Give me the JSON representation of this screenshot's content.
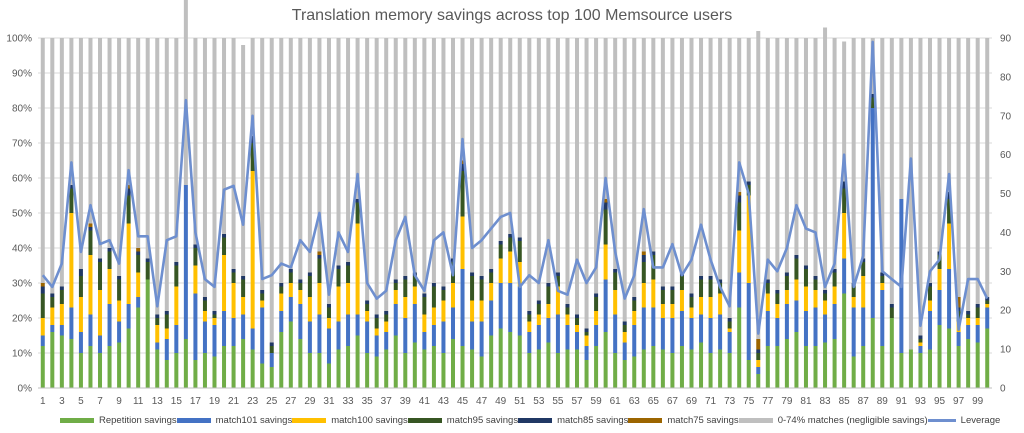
{
  "chart_data": {
    "type": "bar",
    "title": "Translation memory savings across top 100 Memsource users",
    "stacked": true,
    "x": [
      1,
      2,
      3,
      4,
      5,
      6,
      7,
      8,
      9,
      10,
      11,
      12,
      13,
      14,
      15,
      16,
      17,
      18,
      19,
      20,
      21,
      22,
      23,
      24,
      25,
      26,
      27,
      28,
      29,
      30,
      31,
      32,
      33,
      34,
      35,
      36,
      37,
      38,
      39,
      40,
      41,
      42,
      43,
      44,
      45,
      46,
      47,
      48,
      49,
      50,
      51,
      52,
      53,
      54,
      55,
      56,
      57,
      58,
      59,
      60,
      61,
      62,
      63,
      64,
      65,
      66,
      67,
      68,
      69,
      70,
      71,
      72,
      73,
      74,
      75,
      76,
      77,
      78,
      79,
      80,
      81,
      82,
      83,
      84,
      85,
      86,
      87,
      88,
      89,
      90,
      91,
      92,
      93,
      94,
      95,
      96,
      97,
      98,
      99,
      100
    ],
    "x_tick_labels": [
      "1",
      "3",
      "5",
      "7",
      "9",
      "11",
      "13",
      "15",
      "17",
      "19",
      "21",
      "23",
      "25",
      "27",
      "29",
      "31",
      "33",
      "35",
      "37",
      "39",
      "41",
      "43",
      "45",
      "47",
      "49",
      "51",
      "53",
      "55",
      "57",
      "59",
      "61",
      "63",
      "65",
      "67",
      "69",
      "71",
      "73",
      "75",
      "77",
      "79",
      "81",
      "83",
      "85",
      "87",
      "89",
      "91",
      "93",
      "95",
      "97",
      "99"
    ],
    "ylim": [
      0,
      100
    ],
    "y_ticks": [
      "0%",
      "10%",
      "20%",
      "30%",
      "40%",
      "50%",
      "60%",
      "70%",
      "80%",
      "90%",
      "100%"
    ],
    "y2lim": [
      0,
      90
    ],
    "y2_ticks": [
      "0",
      "10",
      "20",
      "30",
      "40",
      "50",
      "60",
      "70",
      "80",
      "90"
    ],
    "grid": true,
    "legend_position": "bottom",
    "series": [
      {
        "name": "Repetition savings",
        "color": "#70ad47",
        "values": [
          12,
          16,
          15,
          14,
          10,
          12,
          10,
          12,
          13,
          17,
          23,
          31,
          11,
          8,
          10,
          14,
          8,
          10,
          9,
          12,
          12,
          14,
          11,
          7,
          6,
          16,
          19,
          14,
          10,
          10,
          7,
          11,
          12,
          15,
          10,
          9,
          11,
          15,
          10,
          13,
          11,
          12,
          10,
          14,
          12,
          11,
          9,
          15,
          17,
          16,
          15,
          10,
          11,
          13,
          10,
          11,
          11,
          8,
          12,
          16,
          10,
          8,
          9,
          11,
          12,
          11,
          10,
          12,
          11,
          13,
          10,
          11,
          10,
          23,
          8,
          4,
          12,
          12,
          14,
          16,
          12,
          12,
          13,
          14,
          27,
          9,
          12,
          20,
          12,
          20,
          10,
          11,
          10,
          11,
          18,
          17,
          12,
          14,
          13,
          17
        ]
      },
      {
        "name": "match101 savings",
        "color": "#4472c4",
        "values": [
          3,
          2,
          3,
          9,
          6,
          9,
          5,
          12,
          6,
          7,
          3,
          0,
          2,
          6,
          8,
          44,
          19,
          9,
          9,
          10,
          8,
          7,
          6,
          16,
          4,
          6,
          7,
          10,
          9,
          11,
          10,
          8,
          9,
          6,
          9,
          6,
          5,
          9,
          10,
          11,
          5,
          6,
          9,
          9,
          22,
          8,
          10,
          10,
          13,
          14,
          14,
          6,
          7,
          7,
          11,
          7,
          5,
          4,
          6,
          15,
          11,
          5,
          9,
          12,
          11,
          9,
          10,
          10,
          9,
          8,
          10,
          10,
          6,
          10,
          22,
          2,
          10,
          8,
          10,
          9,
          10,
          11,
          8,
          10,
          10,
          14,
          11,
          60,
          16,
          0,
          44,
          0,
          2,
          11,
          10,
          17,
          4,
          4,
          5,
          6
        ]
      },
      {
        "name": "match100 savings",
        "color": "#ffc000",
        "values": [
          5,
          5,
          6,
          27,
          10,
          17,
          13,
          10,
          6,
          23,
          7,
          0,
          5,
          3,
          11,
          0,
          8,
          3,
          2,
          16,
          10,
          5,
          45,
          2,
          0,
          5,
          4,
          4,
          7,
          9,
          3,
          10,
          9,
          26,
          3,
          2,
          3,
          4,
          6,
          5,
          5,
          5,
          6,
          7,
          15,
          6,
          6,
          5,
          7,
          9,
          7,
          3,
          3,
          4,
          8,
          3,
          2,
          3,
          4,
          10,
          7,
          3,
          4,
          7,
          8,
          4,
          4,
          6,
          3,
          5,
          6,
          6,
          1,
          12,
          25,
          2,
          5,
          4,
          4,
          6,
          7,
          5,
          4,
          5,
          13,
          3,
          9,
          0,
          2,
          0,
          0,
          0,
          1,
          3,
          6,
          13,
          3,
          2,
          2,
          1
        ]
      },
      {
        "name": "match95 savings",
        "color": "#375623",
        "values": [
          7,
          3,
          4,
          7,
          6,
          7,
          8,
          5,
          6,
          8,
          5,
          5,
          2,
          4,
          6,
          0,
          5,
          3,
          1,
          5,
          3,
          5,
          8,
          2,
          2,
          2,
          3,
          2,
          6,
          7,
          3,
          5,
          5,
          6,
          2,
          3,
          2,
          2,
          5,
          3,
          5,
          6,
          3,
          6,
          13,
          7,
          6,
          3,
          4,
          4,
          6,
          2,
          3,
          5,
          3,
          2,
          2,
          1,
          4,
          10,
          5,
          2,
          3,
          6,
          7,
          4,
          4,
          4,
          3,
          5,
          5,
          3,
          2,
          8,
          3,
          2,
          3,
          3,
          4,
          6,
          5,
          3,
          2,
          4,
          7,
          3,
          4,
          3,
          2,
          3,
          0,
          0,
          1,
          4,
          4,
          7,
          3,
          1,
          3,
          1
        ]
      },
      {
        "name": "match85 savings",
        "color": "#203864",
        "values": [
          2,
          1,
          1,
          1,
          2,
          1,
          1,
          1,
          1,
          2,
          1,
          1,
          1,
          1,
          1,
          0,
          1,
          1,
          1,
          1,
          1,
          1,
          2,
          1,
          1,
          1,
          1,
          1,
          1,
          1,
          1,
          1,
          1,
          1,
          1,
          1,
          1,
          1,
          1,
          1,
          1,
          1,
          1,
          1,
          2,
          1,
          1,
          1,
          1,
          1,
          1,
          1,
          1,
          1,
          1,
          1,
          1,
          1,
          1,
          2,
          1,
          1,
          1,
          2,
          1,
          1,
          1,
          1,
          1,
          1,
          1,
          1,
          1,
          2,
          1,
          1,
          1,
          1,
          1,
          1,
          1,
          1,
          1,
          1,
          2,
          1,
          1,
          1,
          1,
          1,
          0,
          0,
          1,
          1,
          1,
          2,
          1,
          1,
          1,
          1
        ]
      },
      {
        "name": "match75 savings",
        "color": "#9c6500",
        "values": [
          1,
          0,
          0,
          0,
          0,
          1,
          0,
          0,
          0,
          1,
          1,
          0,
          0,
          0,
          0,
          0,
          0,
          0,
          0,
          0,
          0,
          0,
          0,
          0,
          0,
          0,
          0,
          0,
          0,
          1,
          0,
          0,
          0,
          0,
          0,
          0,
          0,
          0,
          0,
          0,
          0,
          0,
          0,
          0,
          1,
          0,
          0,
          0,
          0,
          0,
          0,
          0,
          0,
          0,
          0,
          0,
          0,
          0,
          0,
          1,
          0,
          0,
          0,
          1,
          0,
          0,
          0,
          0,
          0,
          0,
          0,
          0,
          0,
          1,
          0,
          3,
          0,
          0,
          0,
          0,
          0,
          0,
          0,
          0,
          0,
          0,
          0,
          0,
          0,
          0,
          0,
          0,
          0,
          0,
          0,
          0,
          3,
          0,
          0,
          0
        ]
      },
      {
        "name": "0-74% matches (negligible savings)",
        "color": "#bfbfbf",
        "values": [
          70,
          73,
          71,
          42,
          66,
          53,
          63,
          60,
          68,
          42,
          60,
          63,
          79,
          78,
          64,
          56,
          59,
          74,
          78,
          56,
          66,
          66,
          28,
          72,
          87,
          70,
          66,
          69,
          67,
          61,
          76,
          65,
          64,
          46,
          75,
          79,
          78,
          69,
          68,
          67,
          73,
          70,
          71,
          63,
          35,
          67,
          68,
          66,
          58,
          56,
          57,
          78,
          75,
          70,
          67,
          76,
          79,
          83,
          73,
          46,
          66,
          81,
          74,
          61,
          61,
          71,
          71,
          67,
          73,
          68,
          68,
          69,
          80,
          44,
          41,
          88,
          69,
          72,
          67,
          62,
          65,
          68,
          75,
          66,
          40,
          70,
          63,
          16,
          67,
          76,
          46,
          89,
          85,
          70,
          61,
          44,
          74,
          78,
          76,
          74
        ]
      },
      {
        "name": "Leverage",
        "type": "line",
        "axis": "secondary",
        "color": "#6e8fcf",
        "values": [
          29,
          26,
          32,
          58,
          35,
          47,
          37,
          38,
          32,
          56,
          39,
          39,
          21,
          38,
          39,
          74,
          40,
          28,
          26,
          51,
          52,
          42,
          70,
          28,
          29,
          32,
          31,
          38,
          35,
          45,
          24,
          40,
          35,
          55,
          27,
          23,
          25,
          38,
          44,
          29,
          25,
          38,
          40,
          29,
          64,
          36,
          38,
          41,
          44,
          45,
          26,
          29,
          27,
          38,
          25,
          24,
          33,
          27,
          31,
          54,
          35,
          23,
          29,
          46,
          31,
          31,
          37,
          29,
          33,
          42,
          33,
          26,
          21,
          58,
          50,
          14,
          33,
          30,
          36,
          47,
          41,
          40,
          26,
          32,
          60,
          26,
          34,
          89,
          30,
          28,
          26,
          59,
          16,
          30,
          33,
          55,
          15,
          28,
          28,
          23
        ]
      }
    ]
  }
}
